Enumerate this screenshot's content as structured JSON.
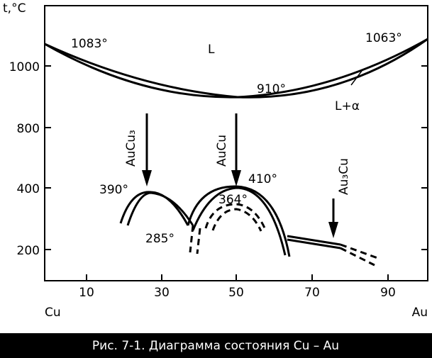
{
  "axes": {
    "y_label": "t,°C",
    "y_ticks": [
      "1000",
      "800",
      "400",
      "200"
    ],
    "x_ticks": [
      "10",
      "30",
      "50",
      "70",
      "90"
    ],
    "x_left": "Cu",
    "x_right": "Au"
  },
  "annotations": {
    "melt_cu": "1083°",
    "liquid": "L",
    "melt_au": "1063°",
    "minimum": "910°",
    "two_phase": "L+α",
    "aucu3": "AuCu₃",
    "aucu": "AuCu",
    "au3cu": "Au₃Cu",
    "t390": "390°",
    "t410": "410°",
    "t364": "364°",
    "t285": "285°"
  },
  "caption": "Рис. 7-1. Диаграмма состояния Cu – Au"
}
